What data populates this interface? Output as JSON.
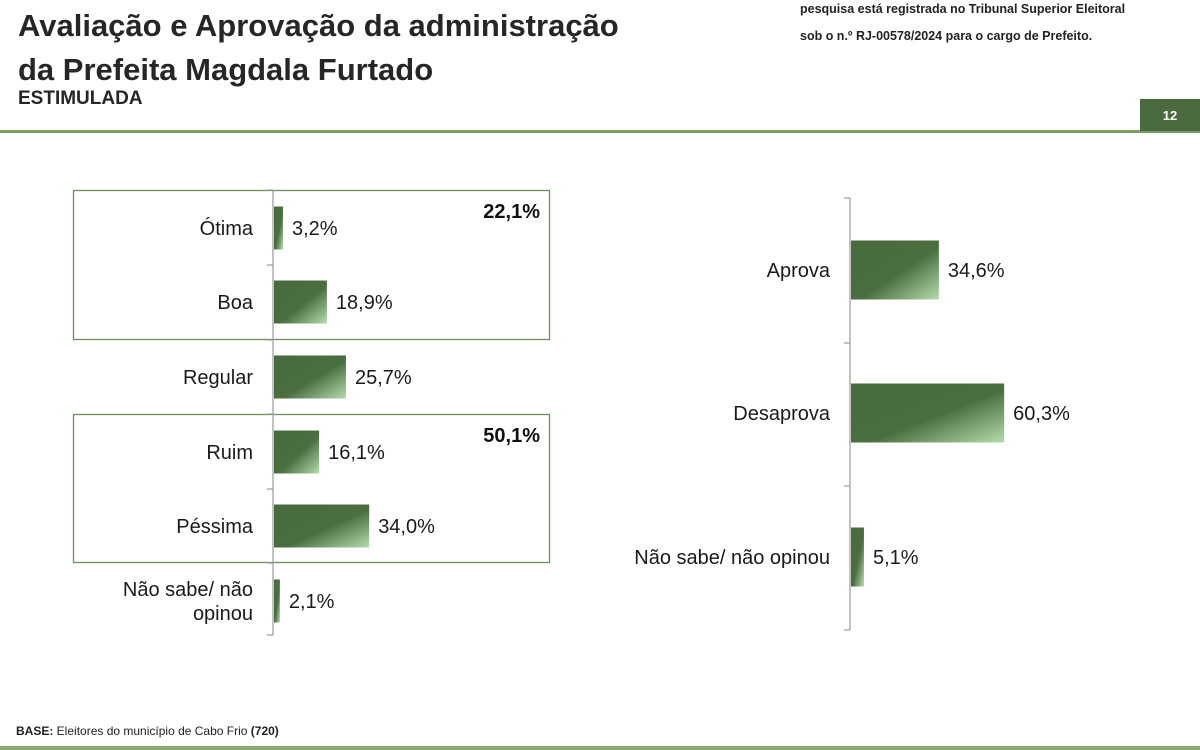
{
  "header": {
    "title_line1": "Avaliação e Aprovação da administração",
    "title_line2": "da Prefeita Magdala Furtado",
    "subtitle": "ESTIMULADA",
    "note_line1": "pesquisa está registrada no Tribunal Superior Eleitoral",
    "note_line2": "sob o n.º RJ-00578/2024 para o cargo de Prefeito.",
    "page_number": "12"
  },
  "footer": {
    "base_label": "BASE:",
    "base_text": " Eleitores do município de Cabo Frio ",
    "base_count": "(720)"
  },
  "colors": {
    "bar_dark": "#476b3c",
    "bar_light": "#a9d3a0",
    "box_border": "#6f8f5e",
    "axis": "#999999"
  },
  "chart_data": [
    {
      "type": "bar",
      "orientation": "horizontal",
      "categories": [
        [
          "Ótima"
        ],
        [
          "Boa"
        ],
        [
          "Regular"
        ],
        [
          "Ruim"
        ],
        [
          "Péssima"
        ],
        [
          "Não sabe/ não",
          "opinou"
        ]
      ],
      "values": [
        3.2,
        18.9,
        25.7,
        16.1,
        34.0,
        2.1
      ],
      "data_labels": [
        "3,2%",
        "18,9%",
        "25,7%",
        "16,1%",
        "34,0%",
        "2,1%"
      ],
      "groups": [
        {
          "members": [
            0,
            1
          ],
          "total_label": "22,1%"
        },
        {
          "members": [
            3,
            4
          ],
          "total_label": "50,1%"
        }
      ],
      "grid": false,
      "legend": "none"
    },
    {
      "type": "bar",
      "orientation": "horizontal",
      "categories": [
        [
          "Aprova"
        ],
        [
          "Desaprova"
        ],
        [
          "Não sabe/ não opinou"
        ]
      ],
      "values": [
        34.6,
        60.3,
        5.1
      ],
      "data_labels": [
        "34,6%",
        "60,3%",
        "5,1%"
      ],
      "grid": false,
      "legend": "none"
    }
  ]
}
